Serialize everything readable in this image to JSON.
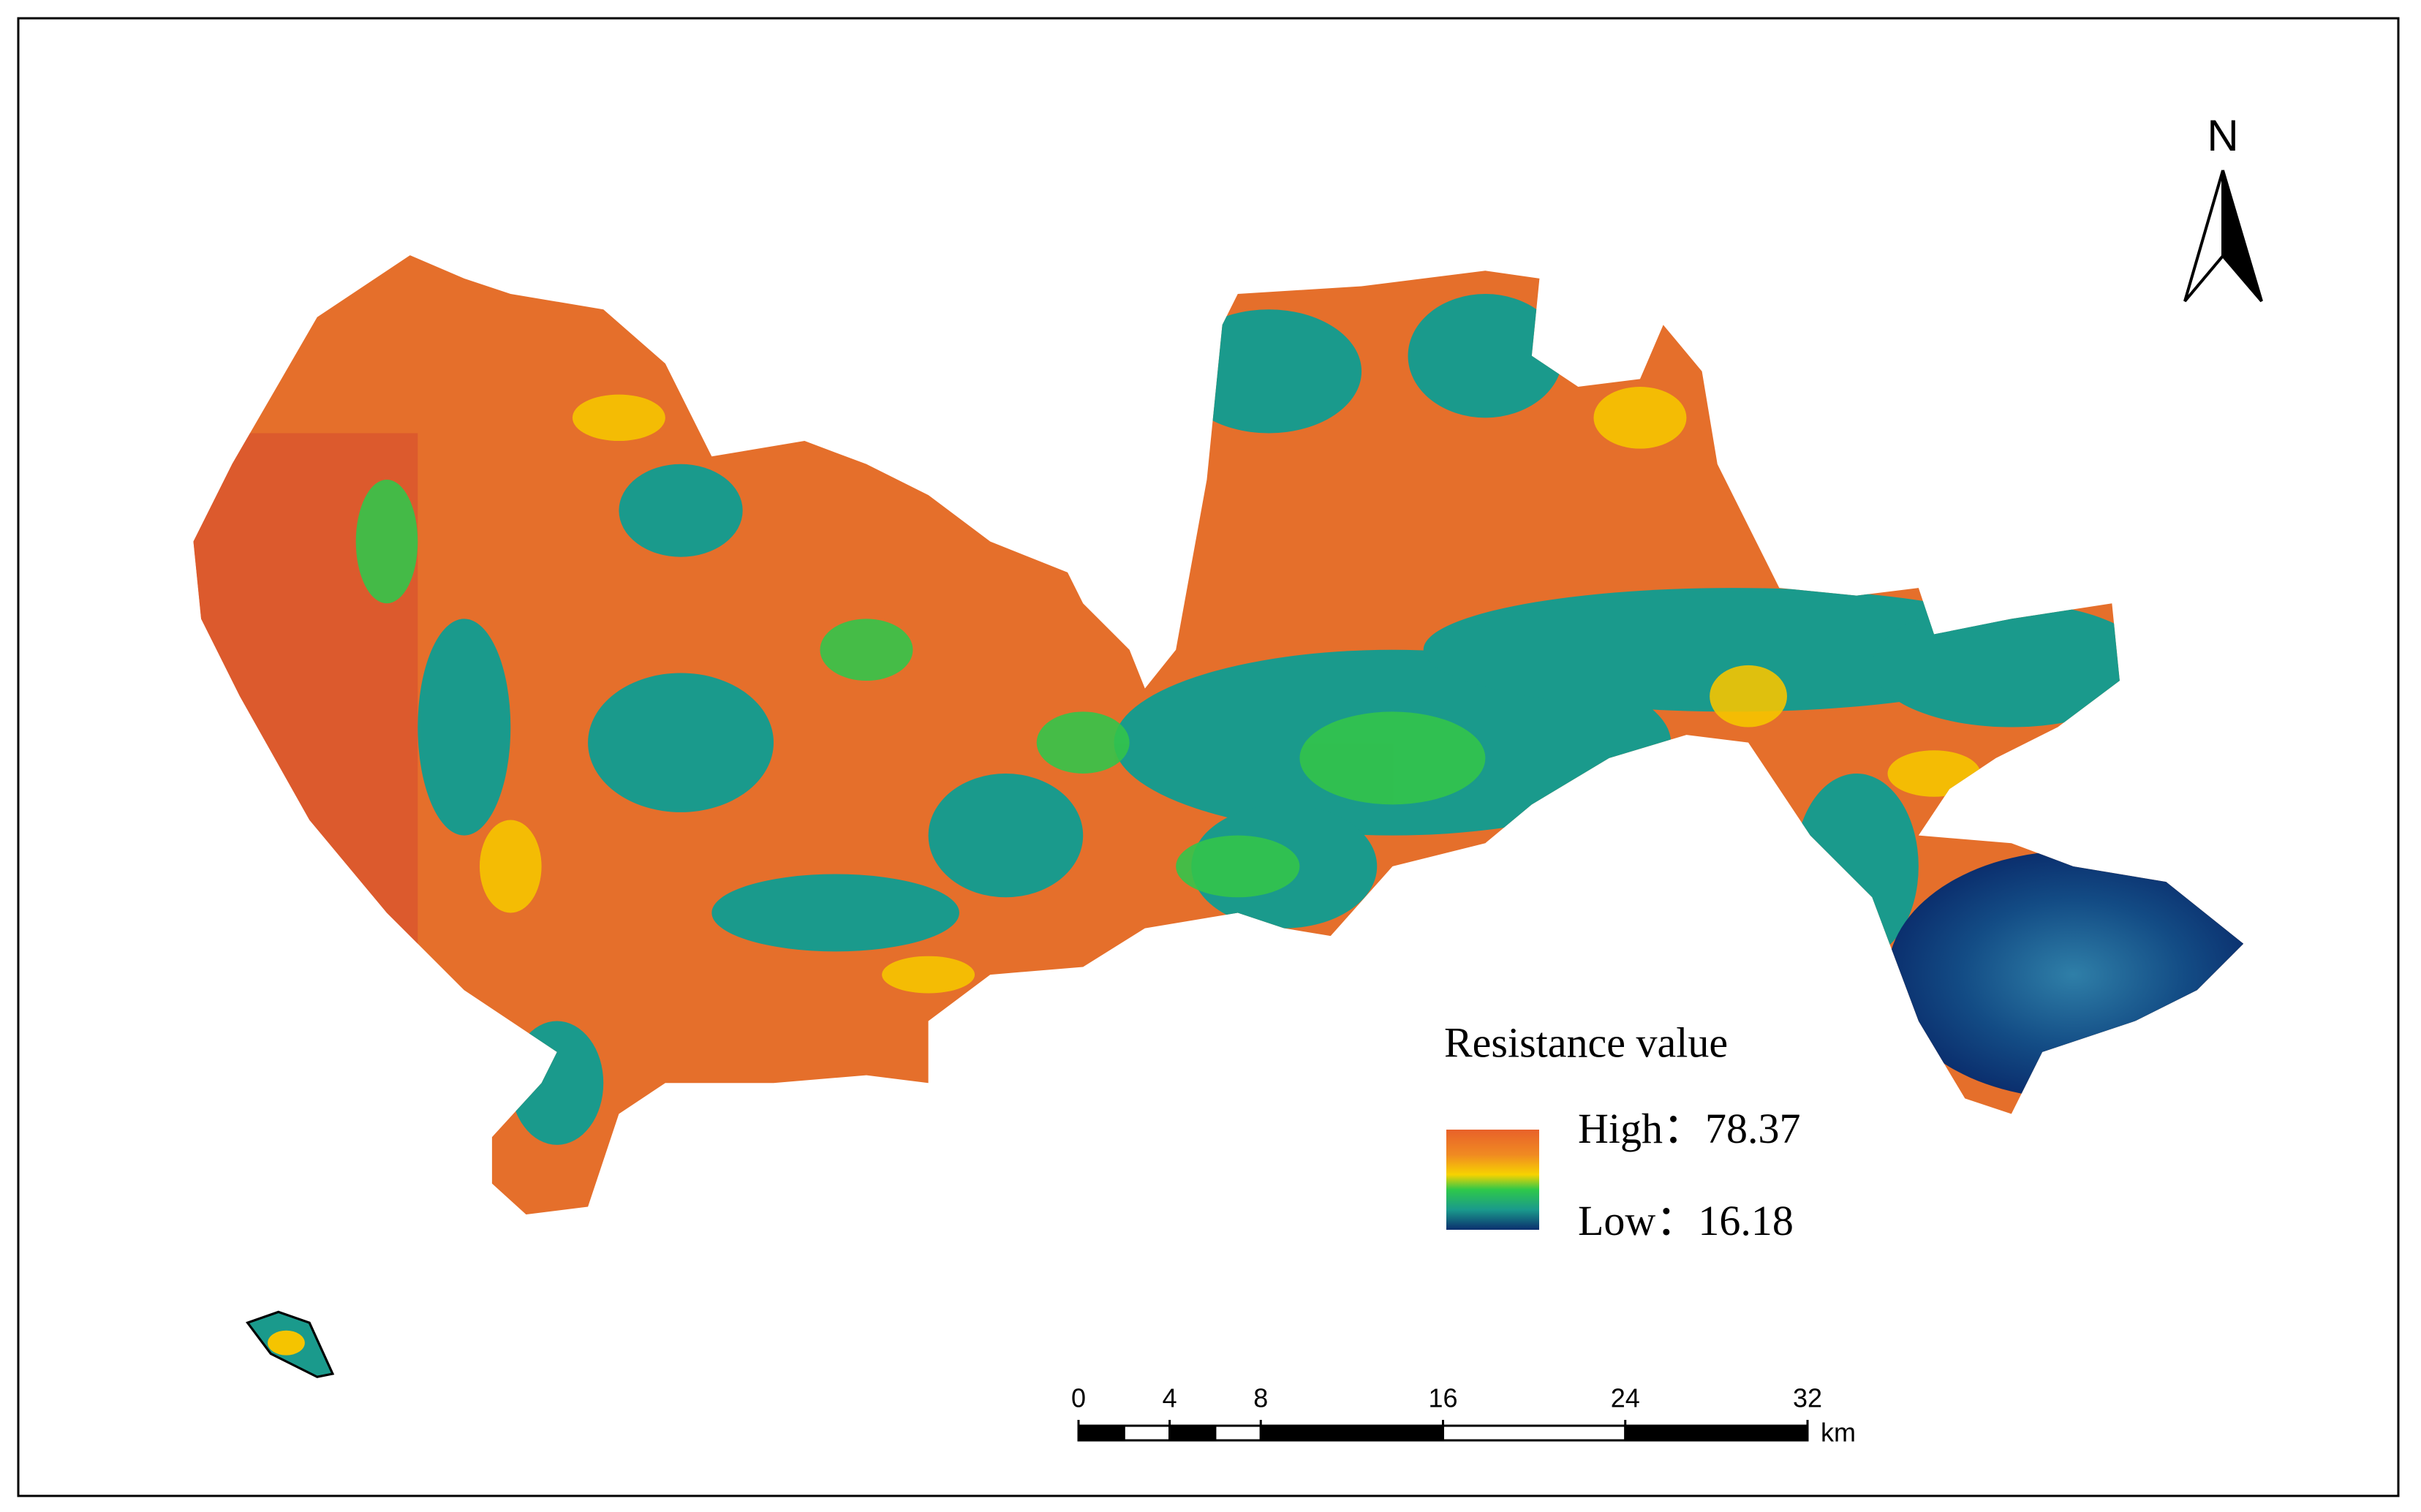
{
  "north_arrow": {
    "label": "N"
  },
  "legend": {
    "title": "Resistance value",
    "high": {
      "label": "High：",
      "value": 78.37
    },
    "low": {
      "label": "Low：",
      "value": 16.18
    }
  },
  "scale_bar": {
    "ticks": [
      0,
      4,
      8,
      16,
      24,
      32
    ],
    "unit": "km"
  }
}
